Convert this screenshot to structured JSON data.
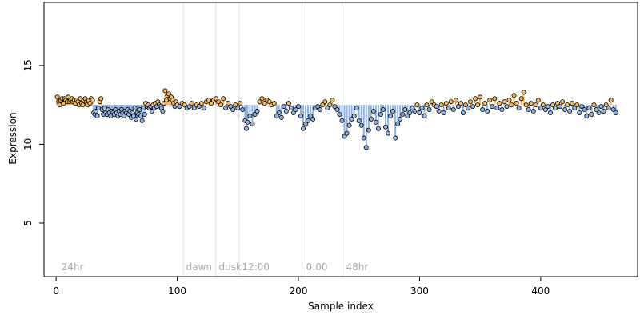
{
  "chart_data": {
    "type": "scatter",
    "title": "",
    "xlabel": "Sample index",
    "ylabel": "Expression",
    "xlim": [
      -10,
      480
    ],
    "ylim": [
      1.6,
      19.0
    ],
    "x_ticks": [
      0,
      100,
      200,
      300,
      400
    ],
    "y_ticks": [
      5,
      10,
      15
    ],
    "grid": false,
    "legend": "none",
    "reference_value": 12.5,
    "colors": {
      "above": "#f2b860",
      "below": "#8fb3e4",
      "point_stroke": "#000000",
      "annotation": "#aaaaaa",
      "vline": "#dddddd"
    },
    "annotations": [
      {
        "x": 3,
        "text": "24hr"
      },
      {
        "x": 106,
        "text": "dawn"
      },
      {
        "x": 133,
        "text": "dusk"
      },
      {
        "x": 152,
        "text": "12:00"
      },
      {
        "x": 205,
        "text": "0:00"
      },
      {
        "x": 238,
        "text": "48hr"
      }
    ],
    "vertical_lines": [
      105,
      132,
      151,
      203,
      236
    ],
    "points": [
      [
        1,
        13.0
      ],
      [
        2,
        12.7
      ],
      [
        3,
        12.5
      ],
      [
        4,
        12.8
      ],
      [
        5,
        12.9
      ],
      [
        6,
        12.6
      ],
      [
        7,
        12.9
      ],
      [
        8,
        12.8
      ],
      [
        9,
        12.7
      ],
      [
        10,
        13.0
      ],
      [
        11,
        12.7
      ],
      [
        12,
        12.8
      ],
      [
        13,
        12.9
      ],
      [
        14,
        12.7
      ],
      [
        15,
        12.8
      ],
      [
        16,
        12.6
      ],
      [
        17,
        12.8
      ],
      [
        18,
        12.7
      ],
      [
        19,
        12.5
      ],
      [
        20,
        12.9
      ],
      [
        21,
        12.6
      ],
      [
        22,
        12.5
      ],
      [
        23,
        12.8
      ],
      [
        24,
        12.9
      ],
      [
        25,
        12.7
      ],
      [
        26,
        12.5
      ],
      [
        27,
        12.8
      ],
      [
        28,
        12.6
      ],
      [
        29,
        12.9
      ],
      [
        30,
        12.8
      ],
      [
        31,
        12.0
      ],
      [
        32,
        11.9
      ],
      [
        33,
        12.1
      ],
      [
        34,
        11.8
      ],
      [
        35,
        12.3
      ],
      [
        36,
        12.7
      ],
      [
        37,
        12.9
      ],
      [
        38,
        12.2
      ],
      [
        39,
        11.9
      ],
      [
        40,
        12.3
      ],
      [
        41,
        12.0
      ],
      [
        42,
        11.9
      ],
      [
        43,
        12.2
      ],
      [
        44,
        12.0
      ],
      [
        45,
        11.8
      ],
      [
        46,
        12.1
      ],
      [
        47,
        12.0
      ],
      [
        48,
        11.9
      ],
      [
        49,
        12.2
      ],
      [
        50,
        12.0
      ],
      [
        51,
        11.8
      ],
      [
        52,
        12.1
      ],
      [
        53,
        11.9
      ],
      [
        54,
        12.2
      ],
      [
        55,
        12.0
      ],
      [
        56,
        11.8
      ],
      [
        57,
        12.1
      ],
      [
        58,
        12.0
      ],
      [
        59,
        12.2
      ],
      [
        60,
        11.9
      ],
      [
        61,
        12.1
      ],
      [
        62,
        11.7
      ],
      [
        63,
        12.0
      ],
      [
        64,
        11.8
      ],
      [
        65,
        12.3
      ],
      [
        66,
        11.6
      ],
      [
        67,
        12.0
      ],
      [
        68,
        11.9
      ],
      [
        69,
        12.2
      ],
      [
        70,
        11.8
      ],
      [
        71,
        11.5
      ],
      [
        72,
        12.3
      ],
      [
        73,
        11.9
      ],
      [
        74,
        12.6
      ],
      [
        75,
        12.4
      ],
      [
        76,
        12.5
      ],
      [
        77,
        12.3
      ],
      [
        78,
        12.4
      ],
      [
        79,
        12.1
      ],
      [
        80,
        12.5
      ],
      [
        81,
        12.3
      ],
      [
        82,
        12.6
      ],
      [
        83,
        12.4
      ],
      [
        84,
        12.7
      ],
      [
        85,
        12.5
      ],
      [
        86,
        12.4
      ],
      [
        87,
        12.3
      ],
      [
        88,
        12.1
      ],
      [
        89,
        12.6
      ],
      [
        90,
        13.4
      ],
      [
        91,
        12.8
      ],
      [
        92,
        13.1
      ],
      [
        93,
        13.2
      ],
      [
        94,
        12.9
      ],
      [
        95,
        13.0
      ],
      [
        96,
        12.8
      ],
      [
        97,
        12.6
      ],
      [
        98,
        12.4
      ],
      [
        99,
        12.7
      ],
      [
        100,
        12.5
      ],
      [
        102,
        12.4
      ],
      [
        104,
        12.6
      ],
      [
        106,
        12.5
      ],
      [
        108,
        12.3
      ],
      [
        110,
        12.4
      ],
      [
        112,
        12.6
      ],
      [
        114,
        12.3
      ],
      [
        116,
        12.5
      ],
      [
        118,
        12.4
      ],
      [
        120,
        12.6
      ],
      [
        122,
        12.3
      ],
      [
        124,
        12.7
      ],
      [
        126,
        12.8
      ],
      [
        128,
        12.6
      ],
      [
        130,
        12.8
      ],
      [
        132,
        12.9
      ],
      [
        134,
        12.7
      ],
      [
        136,
        12.5
      ],
      [
        138,
        12.9
      ],
      [
        140,
        12.3
      ],
      [
        142,
        12.6
      ],
      [
        144,
        12.4
      ],
      [
        146,
        12.2
      ],
      [
        148,
        12.5
      ],
      [
        150,
        12.3
      ],
      [
        152,
        12.6
      ],
      [
        154,
        12.2
      ],
      [
        156,
        11.5
      ],
      [
        157,
        11.0
      ],
      [
        158,
        11.4
      ],
      [
        160,
        11.8
      ],
      [
        162,
        11.3
      ],
      [
        164,
        11.9
      ],
      [
        166,
        12.1
      ],
      [
        168,
        12.7
      ],
      [
        170,
        12.9
      ],
      [
        172,
        12.6
      ],
      [
        174,
        12.8
      ],
      [
        176,
        12.7
      ],
      [
        178,
        12.5
      ],
      [
        180,
        12.6
      ],
      [
        182,
        11.8
      ],
      [
        184,
        12.0
      ],
      [
        186,
        11.7
      ],
      [
        188,
        12.4
      ],
      [
        190,
        12.1
      ],
      [
        192,
        12.6
      ],
      [
        194,
        12.3
      ],
      [
        196,
        12.0
      ],
      [
        198,
        12.2
      ],
      [
        200,
        12.4
      ],
      [
        202,
        11.8
      ],
      [
        204,
        11.0
      ],
      [
        206,
        11.3
      ],
      [
        208,
        11.5
      ],
      [
        210,
        11.8
      ],
      [
        212,
        11.6
      ],
      [
        214,
        12.3
      ],
      [
        216,
        12.4
      ],
      [
        218,
        12.2
      ],
      [
        220,
        12.5
      ],
      [
        222,
        12.7
      ],
      [
        224,
        12.3
      ],
      [
        226,
        12.5
      ],
      [
        228,
        12.8
      ],
      [
        230,
        12.4
      ],
      [
        232,
        12.2
      ],
      [
        234,
        11.9
      ],
      [
        236,
        11.5
      ],
      [
        238,
        10.5
      ],
      [
        240,
        10.7
      ],
      [
        242,
        11.2
      ],
      [
        244,
        11.6
      ],
      [
        246,
        11.8
      ],
      [
        248,
        12.3
      ],
      [
        250,
        11.5
      ],
      [
        252,
        11.2
      ],
      [
        254,
        10.4
      ],
      [
        256,
        9.8
      ],
      [
        258,
        10.9
      ],
      [
        260,
        11.6
      ],
      [
        262,
        12.1
      ],
      [
        264,
        11.4
      ],
      [
        266,
        11.0
      ],
      [
        268,
        11.9
      ],
      [
        270,
        12.2
      ],
      [
        272,
        11.1
      ],
      [
        274,
        10.7
      ],
      [
        276,
        11.8
      ],
      [
        278,
        12.1
      ],
      [
        280,
        10.4
      ],
      [
        282,
        11.3
      ],
      [
        284,
        11.6
      ],
      [
        286,
        11.9
      ],
      [
        288,
        12.2
      ],
      [
        290,
        11.8
      ],
      [
        292,
        12.0
      ],
      [
        294,
        12.3
      ],
      [
        296,
        12.1
      ],
      [
        298,
        12.5
      ],
      [
        300,
        12.0
      ],
      [
        302,
        12.3
      ],
      [
        304,
        11.8
      ],
      [
        306,
        12.5
      ],
      [
        308,
        12.2
      ],
      [
        310,
        12.7
      ],
      [
        312,
        12.5
      ],
      [
        314,
        12.4
      ],
      [
        316,
        12.1
      ],
      [
        318,
        12.5
      ],
      [
        320,
        12.0
      ],
      [
        322,
        12.6
      ],
      [
        324,
        12.3
      ],
      [
        326,
        12.7
      ],
      [
        328,
        12.2
      ],
      [
        330,
        12.8
      ],
      [
        332,
        12.4
      ],
      [
        334,
        12.6
      ],
      [
        336,
        12.0
      ],
      [
        338,
        12.5
      ],
      [
        340,
        12.3
      ],
      [
        342,
        12.7
      ],
      [
        344,
        12.4
      ],
      [
        346,
        12.9
      ],
      [
        348,
        12.5
      ],
      [
        350,
        13.0
      ],
      [
        352,
        12.2
      ],
      [
        354,
        12.6
      ],
      [
        356,
        12.1
      ],
      [
        358,
        12.8
      ],
      [
        360,
        12.4
      ],
      [
        362,
        12.9
      ],
      [
        364,
        12.3
      ],
      [
        366,
        12.6
      ],
      [
        368,
        12.2
      ],
      [
        370,
        12.7
      ],
      [
        372,
        12.4
      ],
      [
        374,
        12.8
      ],
      [
        376,
        12.5
      ],
      [
        378,
        13.1
      ],
      [
        380,
        12.6
      ],
      [
        382,
        12.3
      ],
      [
        384,
        12.9
      ],
      [
        386,
        13.3
      ],
      [
        388,
        12.5
      ],
      [
        390,
        12.2
      ],
      [
        392,
        12.6
      ],
      [
        394,
        12.1
      ],
      [
        396,
        12.5
      ],
      [
        398,
        12.8
      ],
      [
        400,
        12.3
      ],
      [
        402,
        12.5
      ],
      [
        404,
        12.2
      ],
      [
        406,
        12.4
      ],
      [
        408,
        12.0
      ],
      [
        410,
        12.5
      ],
      [
        412,
        12.3
      ],
      [
        414,
        12.6
      ],
      [
        416,
        12.4
      ],
      [
        418,
        12.7
      ],
      [
        420,
        12.2
      ],
      [
        422,
        12.5
      ],
      [
        424,
        12.1
      ],
      [
        426,
        12.6
      ],
      [
        428,
        12.3
      ],
      [
        430,
        12.5
      ],
      [
        432,
        12.0
      ],
      [
        434,
        12.4
      ],
      [
        436,
        12.2
      ],
      [
        438,
        11.8
      ],
      [
        440,
        12.3
      ],
      [
        442,
        11.9
      ],
      [
        444,
        12.5
      ],
      [
        446,
        12.2
      ],
      [
        448,
        12.0
      ],
      [
        450,
        12.4
      ],
      [
        452,
        12.1
      ],
      [
        454,
        12.5
      ],
      [
        456,
        12.3
      ],
      [
        458,
        12.8
      ],
      [
        460,
        12.2
      ],
      [
        462,
        12.0
      ]
    ]
  }
}
